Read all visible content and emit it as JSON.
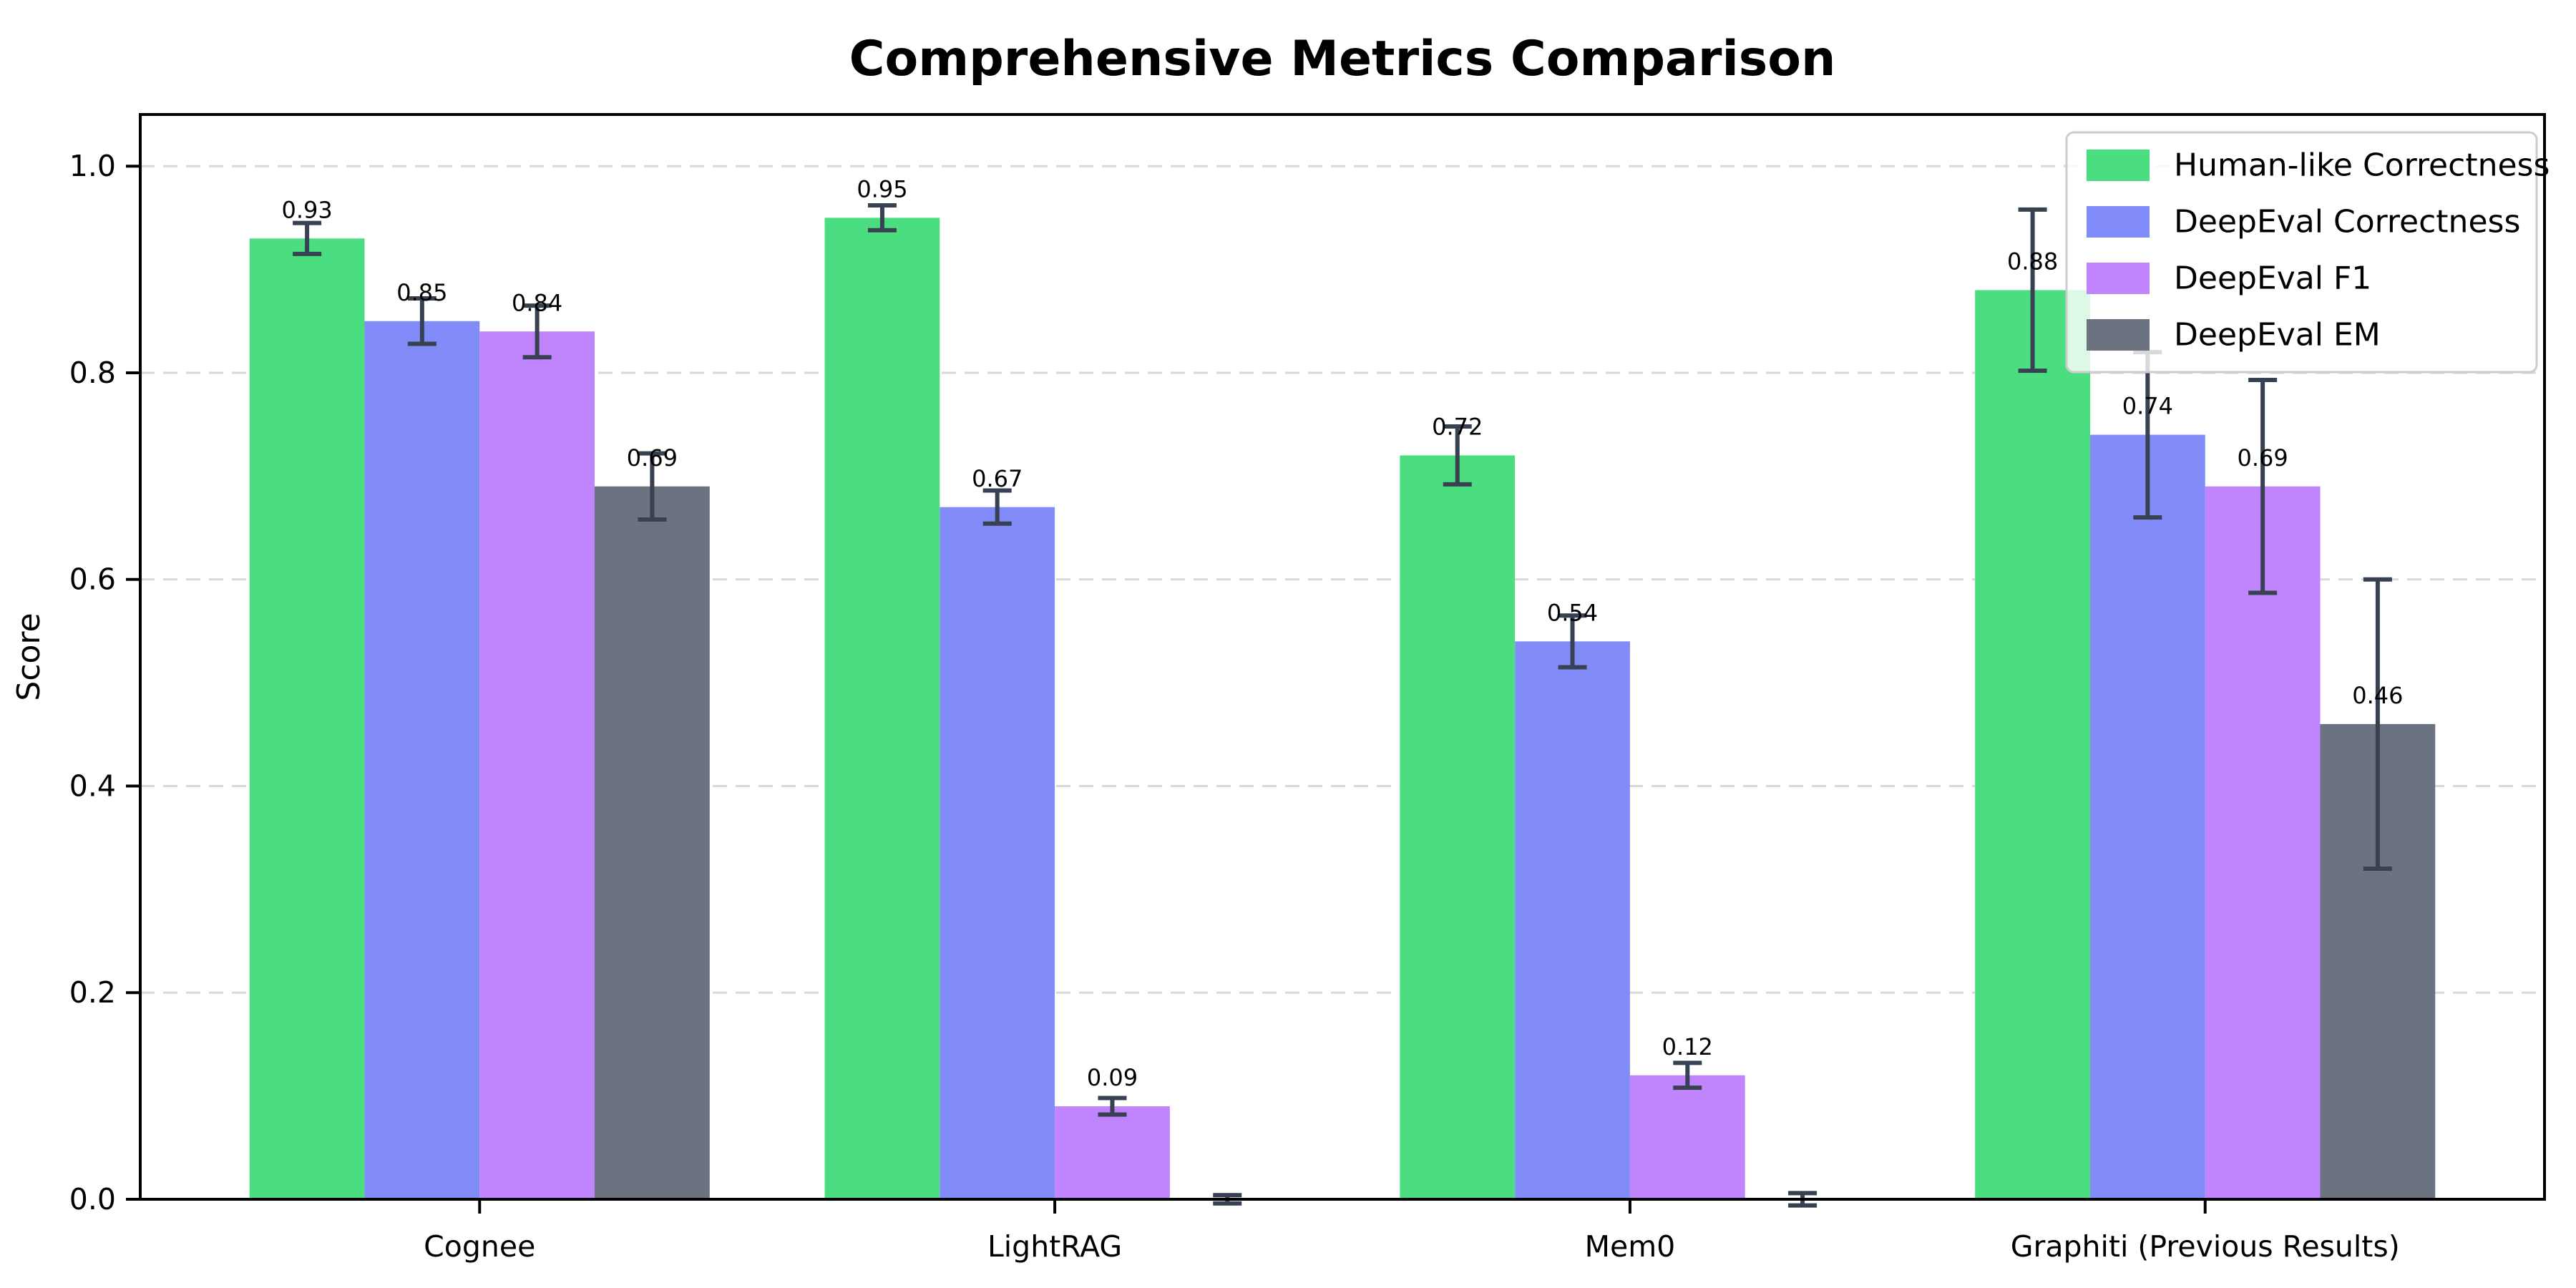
{
  "figure": {
    "background": "#ffffff"
  },
  "chart_data": {
    "type": "bar",
    "title": "Comprehensive Metrics Comparison",
    "xlabel": "",
    "ylabel": "Score",
    "categories": [
      "Cognee",
      "LightRAG",
      "Mem0",
      "Graphiti (Previous Results)"
    ],
    "series": [
      {
        "name": "Human-like Correctness",
        "color": "#4ade80",
        "values": [
          0.93,
          0.95,
          0.72,
          0.88
        ],
        "errors": [
          0.015,
          0.012,
          0.028,
          0.078
        ],
        "labels": [
          "0.93",
          "0.95",
          "0.72",
          "0.88"
        ]
      },
      {
        "name": "DeepEval Correctness",
        "color": "#818cf8",
        "values": [
          0.85,
          0.67,
          0.54,
          0.74
        ],
        "errors": [
          0.022,
          0.016,
          0.025,
          0.08
        ],
        "labels": [
          "0.85",
          "0.67",
          "0.54",
          "0.74"
        ]
      },
      {
        "name": "DeepEval F1",
        "color": "#c084fc",
        "values": [
          0.84,
          0.09,
          0.12,
          0.69
        ],
        "errors": [
          0.025,
          0.008,
          0.012,
          0.103
        ],
        "labels": [
          "0.84",
          "0.09",
          "0.12",
          "0.69"
        ]
      },
      {
        "name": "DeepEval EM",
        "color": "#6b7280",
        "values": [
          0.69,
          0.0,
          0.0,
          0.46
        ],
        "errors": [
          0.032,
          0.004,
          0.006,
          0.14
        ],
        "labels": [
          "0.69",
          null,
          null,
          "0.46"
        ]
      }
    ],
    "ylim": [
      0,
      1.05
    ],
    "yticks": [
      "0.0",
      "0.2",
      "0.4",
      "0.6",
      "0.8",
      "1.0"
    ],
    "grid": "horizontal-dashed",
    "legend_position": "upper-right",
    "colors": {
      "error_bar": "#374151",
      "grid": "#d9d9d9",
      "axis": "#000000",
      "background": "#ffffff",
      "text": "#000000",
      "legend_border": "#cccccc",
      "legend_background": "rgba(255,255,255,0.8)"
    }
  }
}
